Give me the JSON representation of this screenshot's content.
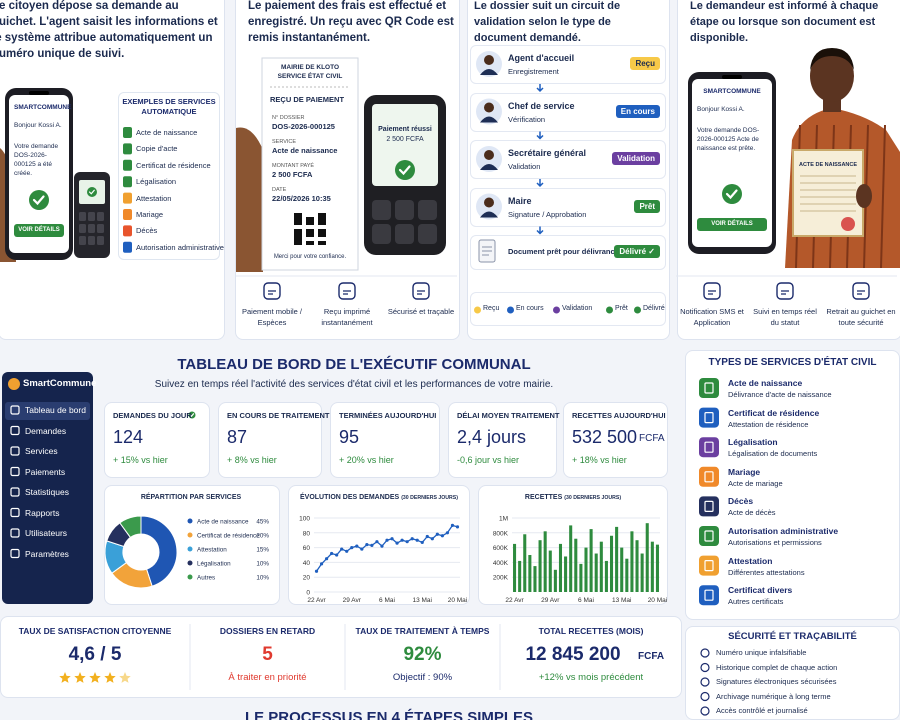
{
  "steps": [
    {
      "text": "Le citoyen dépose sa demande au guichet. L'agent saisit les informations et le système attribue automatiquement un numéro unique de suivi.",
      "phone": {
        "brand": "SMARTCOMMUNE",
        "greeting": "Bonjour Kossi A.",
        "message": "Votre demande DOS-2026-000125 a été créée.",
        "button": "VOIR DÉTAILS"
      },
      "services_title": "EXEMPLES DE SERVICES AUTOMATIQUE",
      "services": [
        "Acte de naissance",
        "Copie d'acte",
        "Certificat de résidence",
        "Légalisation",
        "Attestation",
        "Mariage",
        "Décès",
        "Autorisation administrative"
      ]
    },
    {
      "text": "Le paiement des frais est effectué et enregistré. Un reçu avec QR Code est remis instantanément.",
      "receipt": {
        "header1": "MAIRIE DE KLOTO",
        "header2": "SERVICE ÉTAT CIVIL",
        "title": "REÇU DE PAIEMENT",
        "fields": [
          {
            "label": "N° DOSSIER",
            "value": "DOS-2026-000125"
          },
          {
            "label": "SERVICE",
            "value": "Acte de naissance"
          },
          {
            "label": "MONTANT PAYÉ",
            "value": "2 500 FCFA"
          },
          {
            "label": "DATE",
            "value": "22/05/2026 10:35"
          }
        ],
        "footer": "Merci pour votre confiance."
      },
      "terminal": {
        "status": "Paiement réussi",
        "amount": "2 500 FCFA"
      },
      "features": [
        "Paiement mobile / Espèces",
        "Reçu imprimé instantanément",
        "Sécurisé et traçable"
      ]
    },
    {
      "text": "Le dossier suit un circuit de validation selon le type de document demandé.",
      "circuit": [
        {
          "role": "Agent d'accueil",
          "task": "Enregistrement",
          "status": "Reçu"
        },
        {
          "role": "Chef de service",
          "task": "Vérification",
          "status": "En cours"
        },
        {
          "role": "Secrétaire général",
          "task": "Validation",
          "status": "Validation"
        },
        {
          "role": "Maire",
          "task": "Signature / Approbation",
          "status": "Prêt"
        }
      ],
      "final": {
        "label": "Document prêt pour délivrance",
        "status": "Délivré ✓"
      },
      "legend": [
        "Reçu",
        "En cours",
        "Validation",
        "Prêt",
        "Délivré"
      ]
    },
    {
      "text": "Le demandeur est informé à chaque étape ou lorsque son document est disponible.",
      "phone": {
        "brand": "SMARTCOMMUNE",
        "greeting": "Bonjour Kossi A.",
        "message": "Votre demande DOS-2026-000125 Acte de naissance est prête.",
        "button": "VOIR DÉTAILS"
      },
      "certificate": "ACTE DE NAISSANCE",
      "features": [
        "Notification SMS et Application",
        "Suivi en temps réel du statut",
        "Retrait au guichet en toute sécurité"
      ]
    }
  ],
  "sidebar": {
    "brand": "SmartCommune",
    "nav": [
      "Tableau de bord",
      "Demandes",
      "Services",
      "Paiements",
      "Statistiques",
      "Rapports",
      "Utilisateurs",
      "Paramètres"
    ]
  },
  "dashboard": {
    "title": "TABLEAU DE BORD DE L'EXÉCUTIF COMMUNAL",
    "subtitle": "Suivez en temps réel l'activité des services d'état civil et les performances de votre mairie.",
    "kpis": [
      {
        "label": "DEMANDES DU JOUR",
        "value": "124",
        "delta": "+ 15% vs hier"
      },
      {
        "label": "EN COURS DE TRAITEMENT",
        "value": "87",
        "delta": "+ 8% vs hier"
      },
      {
        "label": "TERMINÉES AUJOURD'HUI",
        "value": "95",
        "delta": "+ 20% vs hier"
      },
      {
        "label": "DÉLAI MOYEN TRAITEMENT",
        "value": "2,4 jours",
        "delta": "-0,6 jour vs hier"
      },
      {
        "label": "RECETTES AUJOURD'HUI",
        "value": "532 500",
        "unit": "FCFA",
        "delta": "+ 18% vs hier"
      }
    ]
  },
  "chart_data": [
    {
      "type": "pie",
      "title": "RÉPARTITION PAR SERVICES",
      "categories": [
        "Acte de naissance",
        "Certificat de résidence",
        "Attestation",
        "Légalisation",
        "Autres"
      ],
      "values": [
        45,
        20,
        15,
        10,
        10
      ],
      "value_labels": [
        "45%",
        "20%",
        "15%",
        "10%",
        "10%"
      ],
      "colors": [
        "#1f56b3",
        "#f2a33a",
        "#3aa0d8",
        "#25305e",
        "#3b9a4c"
      ]
    },
    {
      "type": "line",
      "title": "ÉVOLUTION DES DEMANDES",
      "subtitle": "(30 DERNIERS JOURS)",
      "categories": [
        "22 Avr",
        null,
        null,
        null,
        null,
        null,
        null,
        "29 Avr",
        null,
        null,
        null,
        null,
        null,
        null,
        "6 Mai",
        null,
        null,
        null,
        null,
        null,
        null,
        "13 Mai",
        null,
        null,
        null,
        null,
        null,
        null,
        "20 Mai"
      ],
      "values": [
        28,
        38,
        45,
        52,
        50,
        58,
        55,
        60,
        62,
        58,
        64,
        63,
        68,
        62,
        70,
        72,
        66,
        70,
        68,
        72,
        70,
        67,
        75,
        72,
        78,
        76,
        80,
        90,
        88
      ],
      "color": "#1f5fbf",
      "ylim": [
        0,
        100
      ],
      "yticks": [
        0,
        20,
        40,
        60,
        80,
        100
      ],
      "grid": true
    },
    {
      "type": "bar",
      "title": "RECETTES",
      "subtitle": "(30 DERNIERS JOURS)",
      "categories": [
        "22 Avr",
        null,
        null,
        null,
        null,
        null,
        null,
        "29 Avr",
        null,
        null,
        null,
        null,
        null,
        null,
        "6 Mai",
        null,
        null,
        null,
        null,
        null,
        null,
        "13 Mai",
        null,
        null,
        null,
        null,
        null,
        null,
        "20 Mai"
      ],
      "values": [
        650000,
        420000,
        780000,
        500000,
        350000,
        700000,
        820000,
        560000,
        300000,
        650000,
        480000,
        900000,
        720000,
        380000,
        600000,
        850000,
        520000,
        680000,
        420000,
        760000,
        880000,
        600000,
        450000,
        820000,
        700000,
        520000,
        930000,
        680000,
        640000
      ],
      "color": "#2e8b3e",
      "ylim": [
        0,
        1000000
      ],
      "yticks": [
        {
          "value": 200000,
          "label": "200K"
        },
        {
          "value": 400000,
          "label": "400K"
        },
        {
          "value": 600000,
          "label": "600K"
        },
        {
          "value": 800000,
          "label": "800K"
        },
        {
          "value": 1000000,
          "label": "1M"
        }
      ],
      "grid": true
    }
  ],
  "summary": [
    {
      "label": "TAUX DE SATISFACTION CITOYENNE",
      "value": "4,6 / 5"
    },
    {
      "label": "DOSSIERS EN RETARD",
      "value": "5",
      "note": "À traiter en priorité"
    },
    {
      "label": "TAUX DE TRAITEMENT À TEMPS",
      "value": "92%",
      "note": "Objectif : 90%"
    },
    {
      "label": "TOTAL RECETTES (MOIS)",
      "value": "12 845 200",
      "unit": "FCFA",
      "note": "+12% vs mois précédent"
    }
  ],
  "services_panel": {
    "title": "TYPES DE SERVICES D'ÉTAT CIVIL",
    "items": [
      {
        "name": "Acte de naissance",
        "desc": "Délivrance d'acte de naissance"
      },
      {
        "name": "Certificat de résidence",
        "desc": "Attestation de résidence"
      },
      {
        "name": "Légalisation",
        "desc": "Légalisation de documents"
      },
      {
        "name": "Mariage",
        "desc": "Acte de mariage"
      },
      {
        "name": "Décès",
        "desc": "Acte de décès"
      },
      {
        "name": "Autorisation administrative",
        "desc": "Autorisations et permissions"
      },
      {
        "name": "Attestation",
        "desc": "Différentes attestations"
      },
      {
        "name": "Certificat divers",
        "desc": "Autres certificats"
      }
    ]
  },
  "security": {
    "title": "SÉCURITÉ ET TRAÇABILITÉ",
    "items": [
      "Numéro unique infalsifiable",
      "Historique complet de chaque action",
      "Signatures électroniques sécurisées",
      "Archivage numérique à long terme",
      "Accès contrôlé et journalisé"
    ]
  },
  "footer_title": "LE PROCESSUS EN 4 ÉTAPES SIMPLES"
}
